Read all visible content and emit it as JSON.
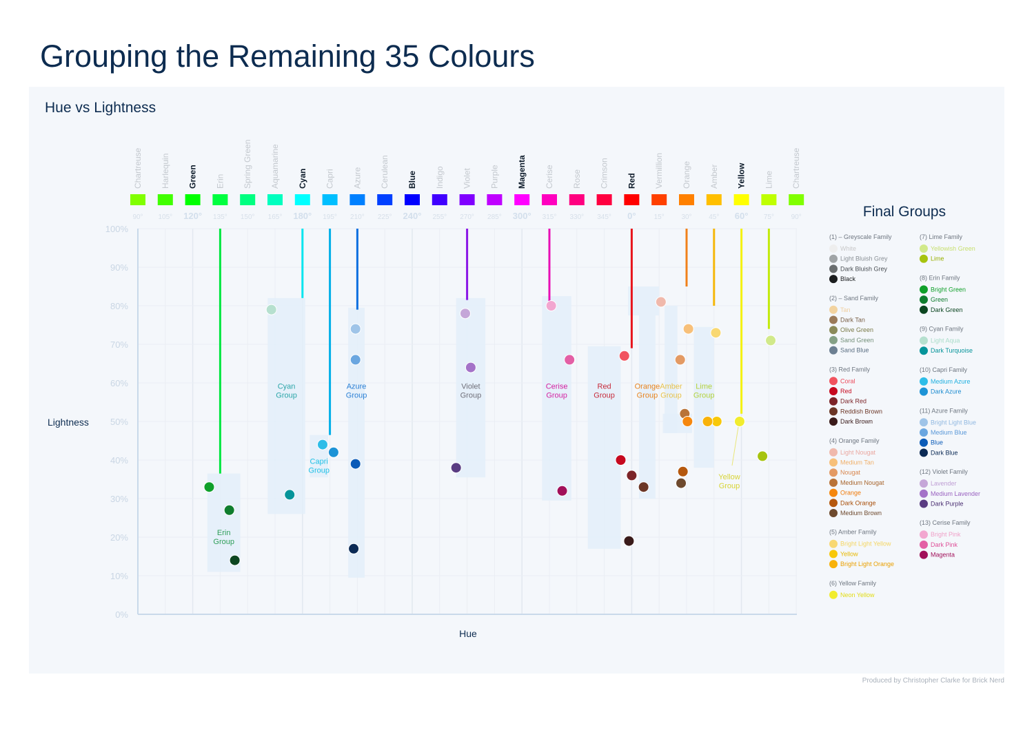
{
  "title": "Grouping the Remaining 35 Colours",
  "credit": "Produced by Christopher Clarke for Brick Nerd",
  "chart_data": {
    "type": "scatter",
    "title": "Hue vs Lightness",
    "xlabel": "Hue",
    "ylabel": "Lightness",
    "ylim": [
      0,
      100
    ],
    "y_ticks": [
      "0%",
      "10%",
      "20%",
      "30%",
      "40%",
      "50%",
      "60%",
      "70%",
      "80%",
      "90%",
      "100%"
    ],
    "hue_columns": [
      {
        "name": "Chartreuse",
        "deg": "90°",
        "color": "#80ff00",
        "major": false
      },
      {
        "name": "Harlequin",
        "deg": "105°",
        "color": "#40ff00",
        "major": false
      },
      {
        "name": "Green",
        "deg": "120°",
        "color": "#00ff00",
        "major": true
      },
      {
        "name": "Erin",
        "deg": "135°",
        "color": "#00ff40",
        "major": false
      },
      {
        "name": "Spring Green",
        "deg": "150°",
        "color": "#00ff80",
        "major": false
      },
      {
        "name": "Aquamarine",
        "deg": "165°",
        "color": "#00ffbf",
        "major": false
      },
      {
        "name": "Cyan",
        "deg": "180°",
        "color": "#00ffff",
        "major": true
      },
      {
        "name": "Capri",
        "deg": "195°",
        "color": "#00bfff",
        "major": false
      },
      {
        "name": "Azure",
        "deg": "210°",
        "color": "#0080ff",
        "major": false
      },
      {
        "name": "Cerulean",
        "deg": "225°",
        "color": "#0040ff",
        "major": false
      },
      {
        "name": "Blue",
        "deg": "240°",
        "color": "#0000ff",
        "major": true
      },
      {
        "name": "Indigo",
        "deg": "255°",
        "color": "#4000ff",
        "major": false
      },
      {
        "name": "Violet",
        "deg": "270°",
        "color": "#8000ff",
        "major": false
      },
      {
        "name": "Purple",
        "deg": "285°",
        "color": "#bf00ff",
        "major": false
      },
      {
        "name": "Magenta",
        "deg": "300°",
        "color": "#ff00ff",
        "major": true
      },
      {
        "name": "Cerise",
        "deg": "315°",
        "color": "#ff00bf",
        "major": false
      },
      {
        "name": "Rose",
        "deg": "330°",
        "color": "#ff0080",
        "major": false
      },
      {
        "name": "Crimson",
        "deg": "345°",
        "color": "#ff0040",
        "major": false
      },
      {
        "name": "Red",
        "deg": "0°",
        "color": "#ff0000",
        "major": true
      },
      {
        "name": "Vermillion",
        "deg": "15°",
        "color": "#ff4000",
        "major": false
      },
      {
        "name": "Orange",
        "deg": "30°",
        "color": "#ff8000",
        "major": false
      },
      {
        "name": "Amber",
        "deg": "45°",
        "color": "#ffbf00",
        "major": false
      },
      {
        "name": "Yellow",
        "deg": "60°",
        "color": "#ffff00",
        "major": true
      },
      {
        "name": "Lime",
        "deg": "75°",
        "color": "#bfff00",
        "major": false
      },
      {
        "name": "Chartreuse",
        "deg": "90°",
        "color": "#80ff00",
        "major": false
      }
    ],
    "groups": [
      {
        "label": [
          "Erin",
          "Group"
        ],
        "label_color": "#2e9e58",
        "x_range": [
          128,
          146
        ],
        "y_range": [
          11,
          36.5
        ],
        "label_y": 20.5,
        "line_x": 135,
        "line_color": "#00e640",
        "line_y_range": [
          36.5,
          100
        ]
      },
      {
        "label": [
          "Cyan",
          "Group"
        ],
        "label_color": "#2aa5a8",
        "x_range": [
          161,
          181.5
        ],
        "y_range": [
          26,
          82
        ],
        "label_y": 58.5,
        "line_x": 180,
        "line_color": "#00e5ef",
        "line_y_range": [
          82,
          100
        ]
      },
      {
        "label": [
          "Capri",
          "Group"
        ],
        "label_color": "#1ec0e6",
        "x_range": [
          184,
          194
        ],
        "y_range": [
          35.5,
          46.5
        ],
        "label_y": 39,
        "line_x": 195,
        "line_color": "#00aee8",
        "line_y_range": [
          46.5,
          100
        ]
      },
      {
        "label": [
          "Azure",
          "Group"
        ],
        "label_color": "#2a7fd4",
        "x_range": [
          205,
          214
        ],
        "y_range": [
          9.5,
          79.5
        ],
        "label_y": 58.5,
        "line_x": 210,
        "line_color": "#0a6fe0",
        "line_y_range": [
          79,
          100
        ]
      },
      {
        "label": [
          "Violet",
          "Group"
        ],
        "label_color": "#6e6e78",
        "x_range": [
          264,
          280
        ],
        "y_range": [
          35.5,
          82
        ],
        "label_y": 58.5,
        "line_x": 270,
        "line_color": "#8a16e6",
        "line_y_range": [
          81.5,
          100
        ]
      },
      {
        "label": [
          "Cerise",
          "Group"
        ],
        "label_color": "#d31fa0",
        "x_range": [
          311,
          327
        ],
        "y_range": [
          29.5,
          82.5
        ],
        "label_y": 58.5,
        "line_x": 315,
        "line_color": "#e80fb5",
        "line_y_range": [
          80,
          100
        ]
      },
      {
        "label": [
          "Red",
          "Group"
        ],
        "label_color": "#c62a3a",
        "x_range": [
          336,
          354
        ],
        "y_range": [
          17,
          69.5
        ],
        "label_y": 58.5,
        "line_x": 0,
        "line_color": "#e8141c",
        "line_y_range": [
          69,
          100
        ]
      },
      {
        "label": [
          "Orange",
          "Group"
        ],
        "label_color": "#e8831c",
        "x_range": [
          358,
          375
        ],
        "y_range": [
          77.5,
          85
        ],
        "label_y": null,
        "line_x": 30,
        "line_color": "#f0801a",
        "line_y_range": [
          85,
          100
        ]
      },
      {
        "label": [
          "Orange",
          "Group"
        ],
        "label_color": "#e8831c",
        "x_range": [
          364,
          373
        ],
        "y_range": [
          30,
          77.5
        ],
        "label_y": 58.5,
        "line_x": null,
        "line_color": null,
        "line_y_range": null
      },
      {
        "label": [
          "Amber",
          "Group"
        ],
        "label_color": "#e8c24a",
        "x_range": [
          378,
          385
        ],
        "y_range": [
          47,
          80
        ],
        "label_y": 58.5,
        "line_x": 45,
        "line_color": "#f5b70a",
        "line_y_range": [
          80,
          100
        ]
      },
      {
        "label": [
          "Yellow",
          "Group"
        ],
        "label_color": "#d8d436",
        "x_range": [
          377,
          393
        ],
        "y_range": [
          47,
          52
        ],
        "label_y": 35,
        "line_x": 60,
        "line_color": "#f4f10a",
        "line_y_range": [
          52,
          100
        ]
      },
      {
        "label": [
          "Lime",
          "Group"
        ],
        "label_color": "#b3d23a",
        "x_range": [
          394,
          405
        ],
        "y_range": [
          38,
          74.5
        ],
        "label_y": 58.5,
        "line_x": 75,
        "line_color": "#c3ea0c",
        "line_y_range": [
          74,
          100
        ]
      }
    ],
    "points": [
      {
        "name": "Bright Green",
        "hue": 129,
        "lightness": 33,
        "color": "#10a02a"
      },
      {
        "name": "Green",
        "hue": 140,
        "lightness": 27,
        "color": "#0f7d2e"
      },
      {
        "name": "Dark Green",
        "hue": 143,
        "lightness": 14,
        "color": "#0b4520"
      },
      {
        "name": "Light Aqua",
        "hue": 163,
        "lightness": 79,
        "color": "#b6e0cf"
      },
      {
        "name": "Dark Turquoise",
        "hue": 173,
        "lightness": 31,
        "color": "#05949a"
      },
      {
        "name": "Medium Azure",
        "hue": 191,
        "lightness": 44,
        "color": "#2ebde8"
      },
      {
        "name": "Dark Azure",
        "hue": 197,
        "lightness": 42,
        "color": "#1d93d6"
      },
      {
        "name": "Bright Light Blue",
        "hue": 209,
        "lightness": 74,
        "color": "#9fc4e8"
      },
      {
        "name": "Medium Blue",
        "hue": 209,
        "lightness": 66,
        "color": "#6aa6e0"
      },
      {
        "name": "Blue",
        "hue": 209,
        "lightness": 39,
        "color": "#0b5bb8"
      },
      {
        "name": "Dark Blue",
        "hue": 208,
        "lightness": 17,
        "color": "#0b2a55"
      },
      {
        "name": "Lavender",
        "hue": 269,
        "lightness": 78,
        "color": "#c5a6d8"
      },
      {
        "name": "Medium Lavender",
        "hue": 272,
        "lightness": 64,
        "color": "#a472c8"
      },
      {
        "name": "Dark Purple",
        "hue": 264,
        "lightness": 38,
        "color": "#5a3c82"
      },
      {
        "name": "Bright Pink",
        "hue": 316,
        "lightness": 80,
        "color": "#f2a7d0"
      },
      {
        "name": "Dark Pink",
        "hue": 326,
        "lightness": 66,
        "color": "#e35fa5"
      },
      {
        "name": "Magenta",
        "hue": 322,
        "lightness": 32,
        "color": "#a1105a"
      },
      {
        "name": "Coral",
        "hue": 356,
        "lightness": 67,
        "color": "#f1535f"
      },
      {
        "name": "Red",
        "hue": 354,
        "lightness": 40,
        "color": "#c6091f"
      },
      {
        "name": "Dark Red",
        "hue": 0,
        "lightness": 36,
        "color": "#7c2428"
      },
      {
        "name": "Reddish Brown",
        "hue": 6.5,
        "lightness": 33,
        "color": "#6b3626"
      },
      {
        "name": "Dark Brown",
        "hue": 358.5,
        "lightness": 19,
        "color": "#3a1b1a"
      },
      {
        "name": "Light Nougat",
        "hue": 16,
        "lightness": 81,
        "color": "#f0b9ac"
      },
      {
        "name": "Medium Tan",
        "hue": 31,
        "lightness": 74,
        "color": "#f7c07a"
      },
      {
        "name": "Nougat",
        "hue": 26.5,
        "lightness": 66,
        "color": "#e39a64"
      },
      {
        "name": "Medium Nougat",
        "hue": 29,
        "lightness": 52,
        "color": "#b97338"
      },
      {
        "name": "Orange",
        "hue": 30.5,
        "lightness": 50,
        "color": "#f5870e"
      },
      {
        "name": "Dark Orange",
        "hue": 28,
        "lightness": 37,
        "color": "#b5580e"
      },
      {
        "name": "Medium Brown",
        "hue": 27,
        "lightness": 34,
        "color": "#6e4a2e"
      },
      {
        "name": "Bright Light Yellow",
        "hue": 46,
        "lightness": 73,
        "color": "#f8d873"
      },
      {
        "name": "Yellow",
        "hue": 46.5,
        "lightness": 50,
        "color": "#f8c80a"
      },
      {
        "name": "Bright Light Orange",
        "hue": 41.5,
        "lightness": 50,
        "color": "#f8b20a"
      },
      {
        "name": "Neon Yellow",
        "hue": 59,
        "lightness": 50,
        "color": "#f1ec2e"
      },
      {
        "name": "Yellowish Green",
        "hue": 76,
        "lightness": 71,
        "color": "#d1e98a"
      },
      {
        "name": "Lime",
        "hue": 71.5,
        "lightness": 41,
        "color": "#a6c30e"
      }
    ]
  },
  "legend": {
    "title": "Final Groups",
    "families": [
      {
        "title": "(1) – Greyscale Family",
        "items": [
          {
            "name": "White",
            "color": "#eeeeee",
            "text": "#c8c8c8"
          },
          {
            "name": "Light Bluish Grey",
            "color": "#a0a4a6",
            "text": "#8a9096"
          },
          {
            "name": "Dark Bluish Grey",
            "color": "#6a6e70",
            "text": "#4b5055"
          },
          {
            "name": "Black",
            "color": "#1b1d1f",
            "text": "#1b1d1f"
          }
        ]
      },
      {
        "title": "(2) – Sand Family",
        "items": [
          {
            "name": "Tan",
            "color": "#f2d3a0",
            "text": "#f0cfa0"
          },
          {
            "name": "Dark Tan",
            "color": "#9a7a5a",
            "text": "#7a6048"
          },
          {
            "name": "Olive Green",
            "color": "#8a8a5a",
            "text": "#7a7a48"
          },
          {
            "name": "Sand Green",
            "color": "#84a086",
            "text": "#74907a"
          },
          {
            "name": "Sand Blue",
            "color": "#6c7f92",
            "text": "#5a6e82"
          }
        ]
      },
      {
        "title": "(3) Red Family",
        "items": [
          {
            "name": "Coral",
            "color": "#f1535f",
            "text": "#ec4a5a"
          },
          {
            "name": "Red",
            "color": "#c6091f",
            "text": "#c6091f"
          },
          {
            "name": "Dark Red",
            "color": "#7c2428",
            "text": "#7c2428"
          },
          {
            "name": "Reddish Brown",
            "color": "#6b3626",
            "text": "#6b3626"
          },
          {
            "name": "Dark Brown",
            "color": "#3a1b1a",
            "text": "#3a1b1a"
          }
        ]
      },
      {
        "title": "(4) Orange Family",
        "items": [
          {
            "name": "Light Nougat",
            "color": "#f0b9ac",
            "text": "#eaa8a0"
          },
          {
            "name": "Medium Tan",
            "color": "#f7c07a",
            "text": "#f0b06a"
          },
          {
            "name": "Nougat",
            "color": "#e39a64",
            "text": "#d8864e"
          },
          {
            "name": "Medium Nougat",
            "color": "#b97338",
            "text": "#a8652c"
          },
          {
            "name": "Orange",
            "color": "#f5870e",
            "text": "#f07a08"
          },
          {
            "name": "Dark Orange",
            "color": "#b5580e",
            "text": "#a84e08"
          },
          {
            "name": "Medium Brown",
            "color": "#6e4a2e",
            "text": "#6e4a2e"
          }
        ]
      },
      {
        "title": "(5) Amber Family",
        "items": [
          {
            "name": "Bright Light Yellow",
            "color": "#f8d873",
            "text": "#f5d560"
          },
          {
            "name": "Yellow",
            "color": "#f8c80a",
            "text": "#e8b800"
          },
          {
            "name": "Bright Light Orange",
            "color": "#f8b20a",
            "text": "#eaa000"
          }
        ]
      },
      {
        "title": "(6) Yellow Family",
        "items": [
          {
            "name": "Neon Yellow",
            "color": "#f1ec2e",
            "text": "#e2dc10"
          }
        ]
      },
      {
        "title": "(7) Lime Family",
        "items": [
          {
            "name": "Yellowish Green",
            "color": "#d1e98a",
            "text": "#c8e070"
          },
          {
            "name": "Lime",
            "color": "#a6c30e",
            "text": "#98b000"
          }
        ]
      },
      {
        "title": "(8) Erin Family",
        "items": [
          {
            "name": "Bright Green",
            "color": "#10a02a",
            "text": "#10a02a"
          },
          {
            "name": "Green",
            "color": "#0f7d2e",
            "text": "#0f7d2e"
          },
          {
            "name": "Dark Green",
            "color": "#0b4520",
            "text": "#0b4520"
          }
        ]
      },
      {
        "title": "(9) Cyan Family",
        "items": [
          {
            "name": "Light Aqua",
            "color": "#b6e0cf",
            "text": "#a8dcc8"
          },
          {
            "name": "Dark Turquoise",
            "color": "#05949a",
            "text": "#05949a"
          }
        ]
      },
      {
        "title": "(10) Capri Family",
        "items": [
          {
            "name": "Medium Azure",
            "color": "#2ebde8",
            "text": "#20b0e0"
          },
          {
            "name": "Dark Azure",
            "color": "#1d93d6",
            "text": "#1d8cd0"
          }
        ]
      },
      {
        "title": "(11) Azure Family",
        "items": [
          {
            "name": "Bright Light Blue",
            "color": "#9fc4e8",
            "text": "#90b8e0"
          },
          {
            "name": "Medium Blue",
            "color": "#6aa6e0",
            "text": "#5a98d8"
          },
          {
            "name": "Blue",
            "color": "#0b5bb8",
            "text": "#0b5bb8"
          },
          {
            "name": "Dark Blue",
            "color": "#0b2a55",
            "text": "#0b2a55"
          }
        ]
      },
      {
        "title": "(12) Violet Family",
        "items": [
          {
            "name": "Lavender",
            "color": "#c5a6d8",
            "text": "#c0a0d5"
          },
          {
            "name": "Medium Lavender",
            "color": "#a472c8",
            "text": "#9a62c0"
          },
          {
            "name": "Dark Purple",
            "color": "#5a3c82",
            "text": "#4a2e72"
          }
        ]
      },
      {
        "title": "(13) Cerise Family",
        "items": [
          {
            "name": "Bright Pink",
            "color": "#f2a7d0",
            "text": "#f0a0c8"
          },
          {
            "name": "Dark Pink",
            "color": "#e35fa5",
            "text": "#de5098"
          },
          {
            "name": "Magenta",
            "color": "#a1105a",
            "text": "#a1105a"
          }
        ]
      }
    ]
  }
}
